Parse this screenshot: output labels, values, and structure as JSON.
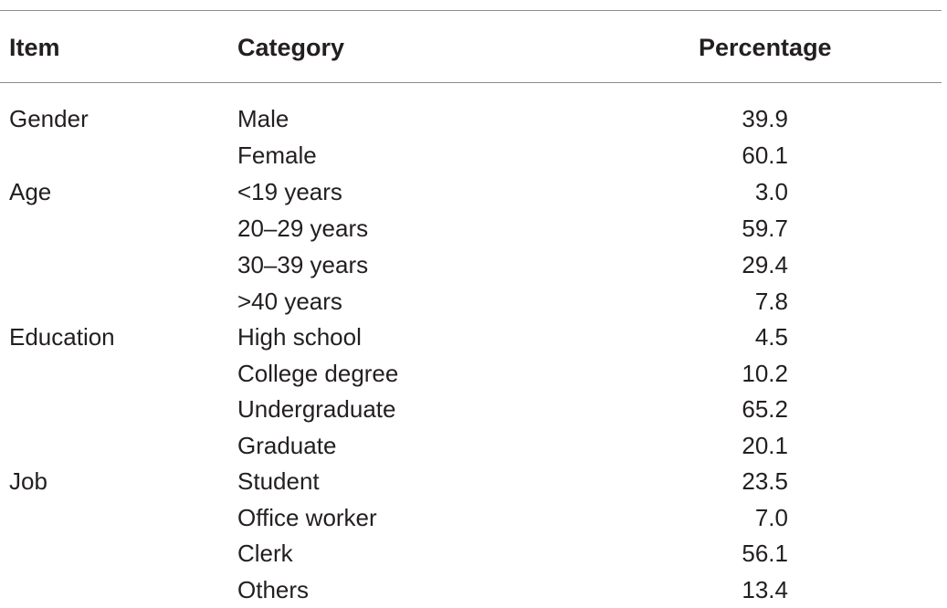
{
  "headers": {
    "item": "Item",
    "category": "Category",
    "percentage": "Percentage"
  },
  "rows": [
    {
      "item": "Gender",
      "category": "Male",
      "percentage": "39.9"
    },
    {
      "item": "",
      "category": "Female",
      "percentage": "60.1"
    },
    {
      "item": "Age",
      "category": "<19 years",
      "percentage": "3.0"
    },
    {
      "item": "",
      "category": "20–29 years",
      "percentage": "59.7"
    },
    {
      "item": "",
      "category": "30–39 years",
      "percentage": "29.4"
    },
    {
      "item": "",
      "category": ">40 years",
      "percentage": "7.8"
    },
    {
      "item": "Education",
      "category": "High school",
      "percentage": "4.5"
    },
    {
      "item": "",
      "category": "College degree",
      "percentage": "10.2"
    },
    {
      "item": "",
      "category": "Undergraduate",
      "percentage": "65.2"
    },
    {
      "item": "",
      "category": "Graduate",
      "percentage": "20.1"
    },
    {
      "item": "Job",
      "category": "Student",
      "percentage": "23.5"
    },
    {
      "item": "",
      "category": "Office worker",
      "percentage": "7.0"
    },
    {
      "item": "",
      "category": "Clerk",
      "percentage": "56.1"
    },
    {
      "item": "",
      "category": "Others",
      "percentage": "13.4"
    }
  ]
}
